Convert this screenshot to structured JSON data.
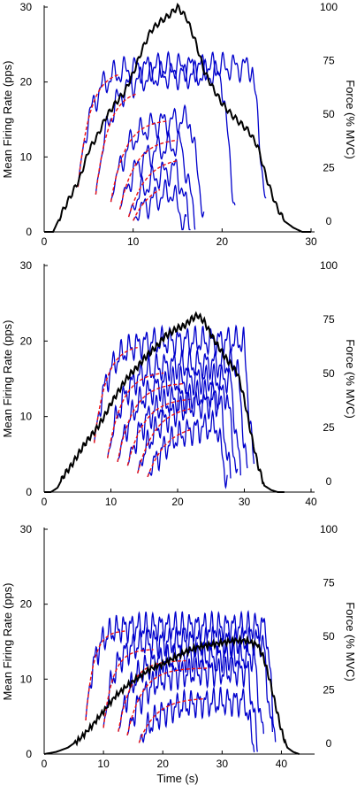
{
  "chart_data": [
    {
      "type": "line",
      "panel": 1,
      "xlim": [
        0,
        30
      ],
      "ylim_left": [
        0,
        30
      ],
      "ylim_right": [
        -5,
        100
      ],
      "x_ticks": [
        0,
        10,
        20,
        30
      ],
      "y_left_ticks": [
        0,
        10,
        20,
        30
      ],
      "y_right_ticks": [
        0,
        25,
        50,
        75,
        100
      ],
      "ylabel_left": "Mean Firing Rate (pps)",
      "ylabel_right": "Force (% MVC)",
      "xlabel": "",
      "colors": {
        "force": "#000000",
        "firing": "#0000cc",
        "fit": "#ee1111"
      },
      "force": {
        "axis": "right",
        "points": [
          [
            0,
            -5
          ],
          [
            1,
            -5
          ],
          [
            2,
            4
          ],
          [
            3,
            12
          ],
          [
            4,
            20
          ],
          [
            5,
            33
          ],
          [
            6,
            40
          ],
          [
            7,
            49
          ],
          [
            8,
            55
          ],
          [
            9,
            60
          ],
          [
            10,
            69
          ],
          [
            11,
            80
          ],
          [
            12,
            89
          ],
          [
            13,
            93
          ],
          [
            14,
            96
          ],
          [
            15,
            100
          ],
          [
            16,
            95
          ],
          [
            17,
            84
          ],
          [
            18,
            70
          ],
          [
            19,
            62
          ],
          [
            20,
            55
          ],
          [
            21,
            50
          ],
          [
            22,
            46
          ],
          [
            23,
            42
          ],
          [
            24,
            35
          ],
          [
            25,
            20
          ],
          [
            26,
            8
          ],
          [
            27,
            0
          ],
          [
            28,
            -3
          ],
          [
            29,
            -5
          ],
          [
            30,
            -5
          ]
        ]
      },
      "units": [
        {
          "start": 3.8,
          "end": 25.0,
          "plateau": 22.0,
          "init": 6.0,
          "tau": 1.5,
          "fit_end": 8.5,
          "fit_plateau": 21.5
        },
        {
          "start": 5.8,
          "end": 21.5,
          "plateau": 21.0,
          "init": 5.0,
          "tau": 1.6,
          "fit_end": 10.5,
          "fit_plateau": 19.0
        },
        {
          "start": 7.5,
          "end": 18.0,
          "plateau": 15.0,
          "init": 4.0,
          "tau": 1.8,
          "fit_end": 14.0,
          "fit_plateau": 15.0
        },
        {
          "start": 8.5,
          "end": 17.0,
          "plateau": 12.0,
          "init": 3.0,
          "tau": 2.0,
          "fit_end": 15.0,
          "fit_plateau": 12.5
        },
        {
          "start": 9.5,
          "end": 16.5,
          "plateau": 9.0,
          "init": 2.0,
          "tau": 2.2,
          "fit_end": 15.0,
          "fit_plateau": 10.0
        },
        {
          "start": 10.0,
          "end": 16.0,
          "plateau": 6.0,
          "init": 1.5,
          "tau": 2.4,
          "fit_end": 13.0,
          "fit_plateau": 7.0
        }
      ]
    },
    {
      "type": "line",
      "panel": 2,
      "xlim": [
        0,
        40
      ],
      "ylim_left": [
        0,
        30
      ],
      "ylim_right": [
        -5,
        100
      ],
      "x_ticks": [
        0,
        10,
        20,
        30,
        40
      ],
      "y_left_ticks": [
        0,
        10,
        20,
        30
      ],
      "y_right_ticks": [
        0,
        25,
        50,
        75,
        100
      ],
      "ylabel_left": "Mean Firing Rate (pps)",
      "ylabel_right": "Force (% MVC)",
      "xlabel": "",
      "colors": {
        "force": "#000000",
        "firing": "#0000cc",
        "fit": "#ee1111"
      },
      "force": {
        "axis": "right",
        "points": [
          [
            0,
            -5
          ],
          [
            1,
            -5
          ],
          [
            2,
            -3
          ],
          [
            3,
            3
          ],
          [
            4,
            7
          ],
          [
            5,
            12
          ],
          [
            6,
            17
          ],
          [
            7,
            21
          ],
          [
            8,
            25
          ],
          [
            9,
            30
          ],
          [
            10,
            36
          ],
          [
            11,
            41
          ],
          [
            12,
            46
          ],
          [
            13,
            50
          ],
          [
            14,
            53
          ],
          [
            15,
            57
          ],
          [
            16,
            60
          ],
          [
            17,
            63
          ],
          [
            18,
            67
          ],
          [
            19,
            69
          ],
          [
            20,
            71
          ],
          [
            21,
            72
          ],
          [
            22,
            75
          ],
          [
            23,
            77
          ],
          [
            24,
            74
          ],
          [
            25,
            68
          ],
          [
            26,
            63
          ],
          [
            27,
            58
          ],
          [
            28,
            54
          ],
          [
            29,
            50
          ],
          [
            30,
            38
          ],
          [
            31,
            22
          ],
          [
            32,
            8
          ],
          [
            33,
            -2
          ],
          [
            34,
            -4
          ],
          [
            35,
            -5
          ],
          [
            36,
            -5
          ]
        ]
      },
      "units": [
        {
          "start": 7.5,
          "end": 31.5,
          "plateau": 20.0,
          "init": 6.5,
          "tau": 2.0,
          "fit_end": 14.0,
          "fit_plateau": 19.5
        },
        {
          "start": 9.5,
          "end": 30.5,
          "plateau": 17.0,
          "init": 4.5,
          "tau": 2.4,
          "fit_end": 18.0,
          "fit_plateau": 16.0
        },
        {
          "start": 11.0,
          "end": 29.5,
          "plateau": 15.0,
          "init": 4.0,
          "tau": 2.6,
          "fit_end": 21.0,
          "fit_plateau": 14.5
        },
        {
          "start": 12.5,
          "end": 29.0,
          "plateau": 13.0,
          "init": 3.5,
          "tau": 2.8,
          "fit_end": 22.0,
          "fit_plateau": 12.5
        },
        {
          "start": 14.0,
          "end": 28.0,
          "plateau": 12.0,
          "init": 2.5,
          "tau": 3.0,
          "fit_end": 22.0,
          "fit_plateau": 11.5
        },
        {
          "start": 15.5,
          "end": 27.5,
          "plateau": 9.0,
          "init": 2.0,
          "tau": 3.2,
          "fit_end": 22.0,
          "fit_plateau": 9.0
        }
      ]
    },
    {
      "type": "line",
      "panel": 3,
      "xlim": [
        0,
        45
      ],
      "ylim_left": [
        0,
        30
      ],
      "ylim_right": [
        -5,
        100
      ],
      "x_ticks": [
        0,
        10,
        20,
        30,
        40
      ],
      "y_left_ticks": [
        0,
        10,
        20,
        30
      ],
      "y_right_ticks": [
        0,
        25,
        50,
        75,
        100
      ],
      "ylabel_left": "Mean Firing Rate (pps)",
      "ylabel_right": "Force (% MVC)",
      "xlabel": "Time (s)",
      "colors": {
        "force": "#000000",
        "firing": "#0000cc",
        "fit": "#ee1111"
      },
      "force": {
        "axis": "right",
        "points": [
          [
            0,
            -5
          ],
          [
            2,
            -4
          ],
          [
            4,
            -2
          ],
          [
            6,
            2
          ],
          [
            8,
            8
          ],
          [
            10,
            15
          ],
          [
            12,
            22
          ],
          [
            14,
            27
          ],
          [
            16,
            31
          ],
          [
            18,
            35
          ],
          [
            20,
            37
          ],
          [
            22,
            40
          ],
          [
            24,
            43
          ],
          [
            26,
            45
          ],
          [
            28,
            46
          ],
          [
            30,
            47
          ],
          [
            32,
            48
          ],
          [
            34,
            48
          ],
          [
            36,
            46
          ],
          [
            37,
            40
          ],
          [
            38,
            30
          ],
          [
            39,
            18
          ],
          [
            40,
            6
          ],
          [
            41,
            -2
          ],
          [
            42,
            -4
          ],
          [
            43,
            -5
          ]
        ]
      },
      "units": [
        {
          "start": 7.0,
          "end": 39.0,
          "plateau": 17.0,
          "init": 4.5,
          "tau": 1.5,
          "fit_end": 14.0,
          "fit_plateau": 16.5
        },
        {
          "start": 10.0,
          "end": 38.5,
          "plateau": 15.0,
          "init": 3.5,
          "tau": 1.8,
          "fit_end": 18.5,
          "fit_plateau": 14.0
        },
        {
          "start": 12.5,
          "end": 37.0,
          "plateau": 13.0,
          "init": 3.0,
          "tau": 2.4,
          "fit_end": 24.0,
          "fit_plateau": 12.5
        },
        {
          "start": 14.0,
          "end": 36.0,
          "plateau": 11.0,
          "init": 2.5,
          "tau": 2.8,
          "fit_end": 28.0,
          "fit_plateau": 11.5
        },
        {
          "start": 16.0,
          "end": 35.5,
          "plateau": 7.0,
          "init": 1.5,
          "tau": 3.2,
          "fit_end": 27.0,
          "fit_plateau": 7.5
        }
      ]
    }
  ]
}
